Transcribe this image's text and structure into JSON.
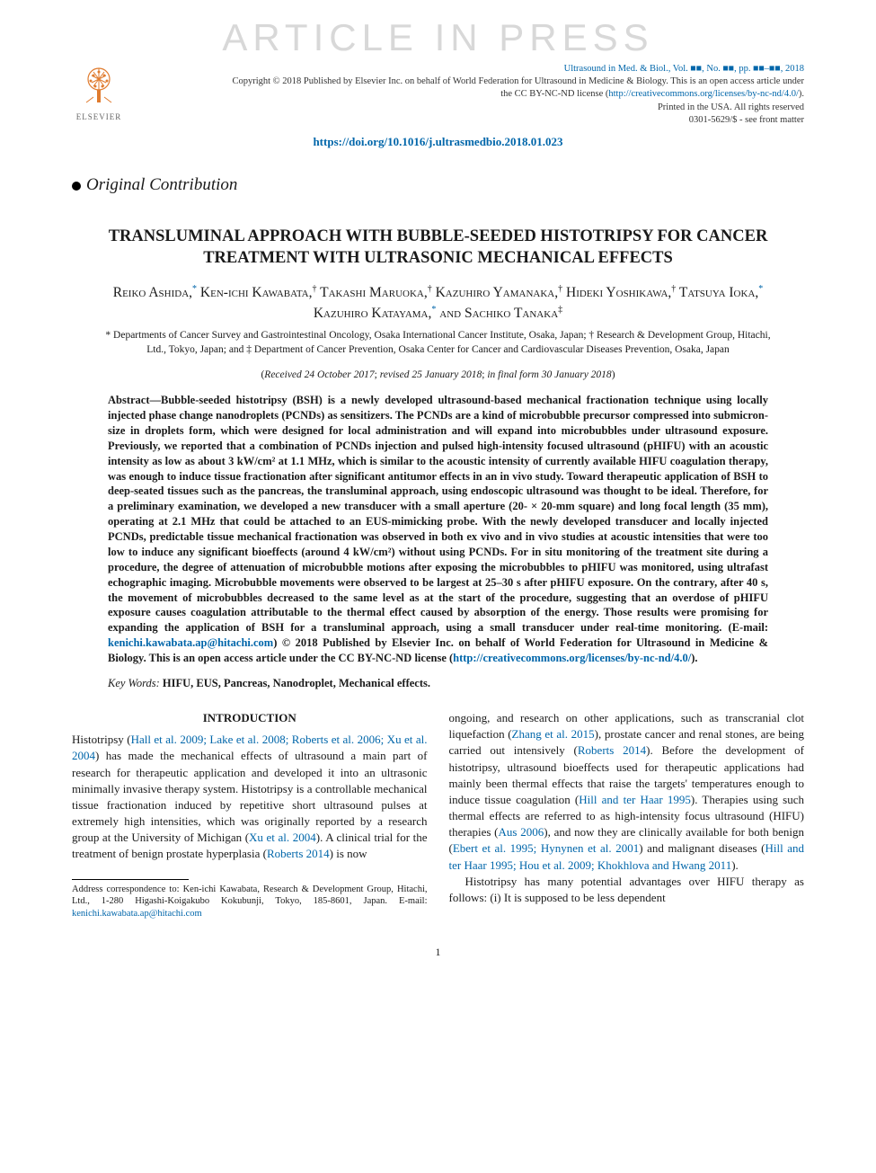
{
  "watermark": "ARTICLE IN PRESS",
  "publisher": {
    "logo_label": "ELSEVIER",
    "tree_color": "#e07b2e"
  },
  "journal": {
    "citation": "Ultrasound in Med. & Biol., Vol. ■■, No. ■■, pp. ■■–■■, 2018",
    "copyright": "Copyright © 2018 Published by Elsevier Inc. on behalf of World Federation for Ultrasound in Medicine & Biology. This is an open access article under the CC BY-NC-ND license (",
    "cc_url": "http://creativecommons.org/licenses/by-nc-nd/4.0/",
    "copyright_tail": ").",
    "printed": "Printed in the USA. All rights reserved",
    "issn": "0301-5629/$ - see front matter",
    "doi": "https://doi.org/10.1016/j.ultrasmedbio.2018.01.023"
  },
  "section_type": "Original Contribution",
  "title": "TRANSLUMINAL APPROACH WITH BUBBLE-SEEDED HISTOTRIPSY FOR CANCER TREATMENT WITH ULTRASONIC MECHANICAL EFFECTS",
  "authors_html": "Reiko Ashida,<sup class='author-link'>*</sup> Ken-ichi Kawabata,<sup>†</sup> Takashi Maruoka,<sup>†</sup> Kazuhiro Yamanaka,<sup>†</sup> Hideki Yoshikawa,<sup>†</sup> Tatsuya Ioka,<sup class='author-link'>*</sup> Kazuhiro Katayama,<sup class='author-link'>*</sup> and Sachiko Tanaka<sup>‡</sup>",
  "affiliations": "* Departments of Cancer Survey and Gastrointestinal Oncology, Osaka International Cancer Institute, Osaka, Japan; † Research & Development Group, Hitachi, Ltd., Tokyo, Japan; and ‡ Department of Cancer Prevention, Osaka Center for Cancer and Cardiovascular Diseases Prevention, Osaka, Japan",
  "dates": {
    "received": "Received 24 October 2017",
    "revised": "revised 25 January 2018",
    "final": "in final form 30 January 2018"
  },
  "abstract": {
    "label": "Abstract—",
    "body_pre_email": "Bubble-seeded histotripsy (BSH) is a newly developed ultrasound-based mechanical fractionation technique using locally injected phase change nanodroplets (PCNDs) as sensitizers. The PCNDs are a kind of microbubble precursor compressed into submicron-size in droplets form, which were designed for local administration and will expand into microbubbles under ultrasound exposure. Previously, we reported that a combination of PCNDs injection and pulsed high-intensity focused ultrasound (pHIFU) with an acoustic intensity as low as about 3 kW/cm² at 1.1 MHz, which is similar to the acoustic intensity of currently available HIFU coagulation therapy, was enough to induce tissue fractionation after significant antitumor effects in an in vivo study. Toward therapeutic application of BSH to deep-seated tissues such as the pancreas, the transluminal approach, using endoscopic ultrasound was thought to be ideal. Therefore, for a preliminary examination, we developed a new transducer with a small aperture (20- × 20-mm square) and long focal length (35 mm), operating at 2.1 MHz that could be attached to an EUS-mimicking probe. With the newly developed transducer and locally injected PCNDs, predictable tissue mechanical fractionation was observed in both ex vivo and in vivo studies at acoustic intensities that were too low to induce any significant bioeffects (around 4 kW/cm²) without using PCNDs. For in situ monitoring of the treatment site during a procedure, the degree of attenuation of microbubble motions after exposing the microbubbles to pHIFU was monitored, using ultrafast echographic imaging. Microbubble movements were observed to be largest at 25–30 s after pHIFU exposure. On the contrary, after 40 s, the movement of microbubbles decreased to the same level as at the start of the procedure, suggesting that an overdose of pHIFU exposure causes coagulation attributable to the thermal effect caused by absorption of the energy. Those results were promising for expanding the application of BSH for a transluminal approach, using a small transducer under real-time monitoring. (E-mail: ",
    "email": "kenichi.kawabata.ap@hitachi.com",
    "body_post_email": ")   © 2018 Published by Elsevier Inc. on behalf of World Federation for Ultrasound in Medicine & Biology. This is an open access article under the CC BY-NC-ND license (",
    "cc_url": "http://creativecommons.org/licenses/by-nc-nd/4.0/",
    "body_tail": ")."
  },
  "keywords": {
    "label": "Key Words:",
    "list": "HIFU, EUS, Pancreas, Nanodroplet, Mechanical effects."
  },
  "intro_heading": "INTRODUCTION",
  "col_left": {
    "p1_pre": "Histotripsy (",
    "p1_cite1": "Hall et al. 2009; Lake et al. 2008; Roberts et al. 2006; Xu et al. 2004",
    "p1_mid1": ") has made the mechanical effects of ultrasound a main part of research for therapeutic application and developed it into an ultrasonic minimally invasive therapy system. Histotripsy is a controllable mechanical tissue fractionation induced by repetitive short ultrasound pulses at extremely high intensities, which was originally reported by a research group at the University of Michigan (",
    "p1_cite2": "Xu et al. 2004",
    "p1_mid2": "). A clinical trial for the treatment of benign prostate hyperplasia (",
    "p1_cite3": "Roberts 2014",
    "p1_tail": ") is now"
  },
  "col_right": {
    "p1_pre": "ongoing, and research on other applications, such as transcranial clot liquefaction (",
    "p1_cite1": "Zhang et al. 2015",
    "p1_mid1": "), prostate cancer and renal stones, are being carried out intensively (",
    "p1_cite2": "Roberts 2014",
    "p1_mid2": "). Before the development of histotripsy, ultrasound bioeffects used for therapeutic applications had mainly been thermal effects that raise the targets' temperatures enough to induce tissue coagulation (",
    "p1_cite3": "Hill and ter Haar 1995",
    "p1_mid3": "). Therapies using such thermal effects are referred to as high-intensity focus ultrasound (HIFU) therapies (",
    "p1_cite4": "Aus 2006",
    "p1_mid4": "), and now they are clinically available for both benign (",
    "p1_cite5": "Ebert et al. 1995; Hynynen et al. 2001",
    "p1_mid5": ") and malignant diseases (",
    "p1_cite6": "Hill and ter Haar 1995; Hou et al. 2009; Khokhlova and Hwang 2011",
    "p1_tail": ").",
    "p2": "Histotripsy has many potential advantages over HIFU therapy as follows: (i) It is supposed to be less dependent"
  },
  "footnote": {
    "text_pre": "Address correspondence to: Ken-ichi Kawabata, Research & Development Group, Hitachi, Ltd., 1-280 Higashi-Koigakubo Kokubunji, Tokyo, 185-8601, Japan. E-mail: ",
    "email": "kenichi.kawabata.ap@hitachi.com"
  },
  "page_number": "1",
  "colors": {
    "link": "#0066aa",
    "watermark": "#d8d8d8",
    "text": "#1a1a1a"
  }
}
